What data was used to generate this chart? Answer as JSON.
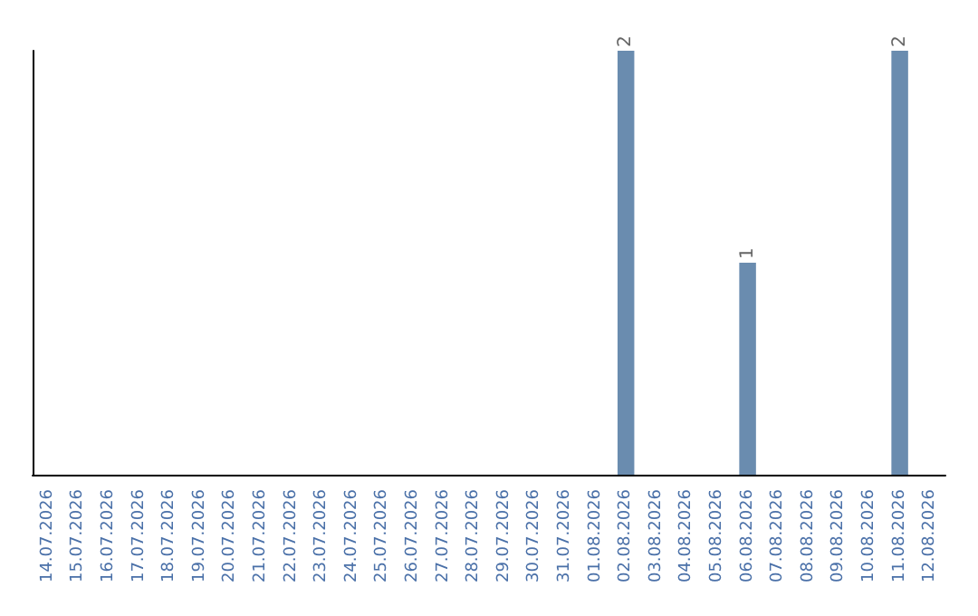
{
  "chart_data": {
    "type": "bar",
    "categories": [
      "14.07.2026",
      "15.07.2026",
      "16.07.2026",
      "17.07.2026",
      "18.07.2026",
      "19.07.2026",
      "20.07.2026",
      "21.07.2026",
      "22.07.2026",
      "23.07.2026",
      "24.07.2026",
      "25.07.2026",
      "26.07.2026",
      "27.07.2026",
      "28.07.2026",
      "29.07.2026",
      "30.07.2026",
      "31.07.2026",
      "01.08.2026",
      "02.08.2026",
      "03.08.2026",
      "04.08.2026",
      "05.08.2026",
      "06.08.2026",
      "07.08.2026",
      "08.08.2026",
      "09.08.2026",
      "10.08.2026",
      "11.08.2026",
      "12.08.2026"
    ],
    "values": [
      null,
      null,
      null,
      null,
      null,
      null,
      null,
      null,
      null,
      null,
      null,
      null,
      null,
      null,
      null,
      null,
      null,
      null,
      null,
      2,
      null,
      null,
      null,
      1,
      null,
      null,
      null,
      null,
      2,
      null
    ],
    "color": "#6a8caf",
    "tick_labels": "x",
    "grid": false,
    "data_labels": true
  }
}
